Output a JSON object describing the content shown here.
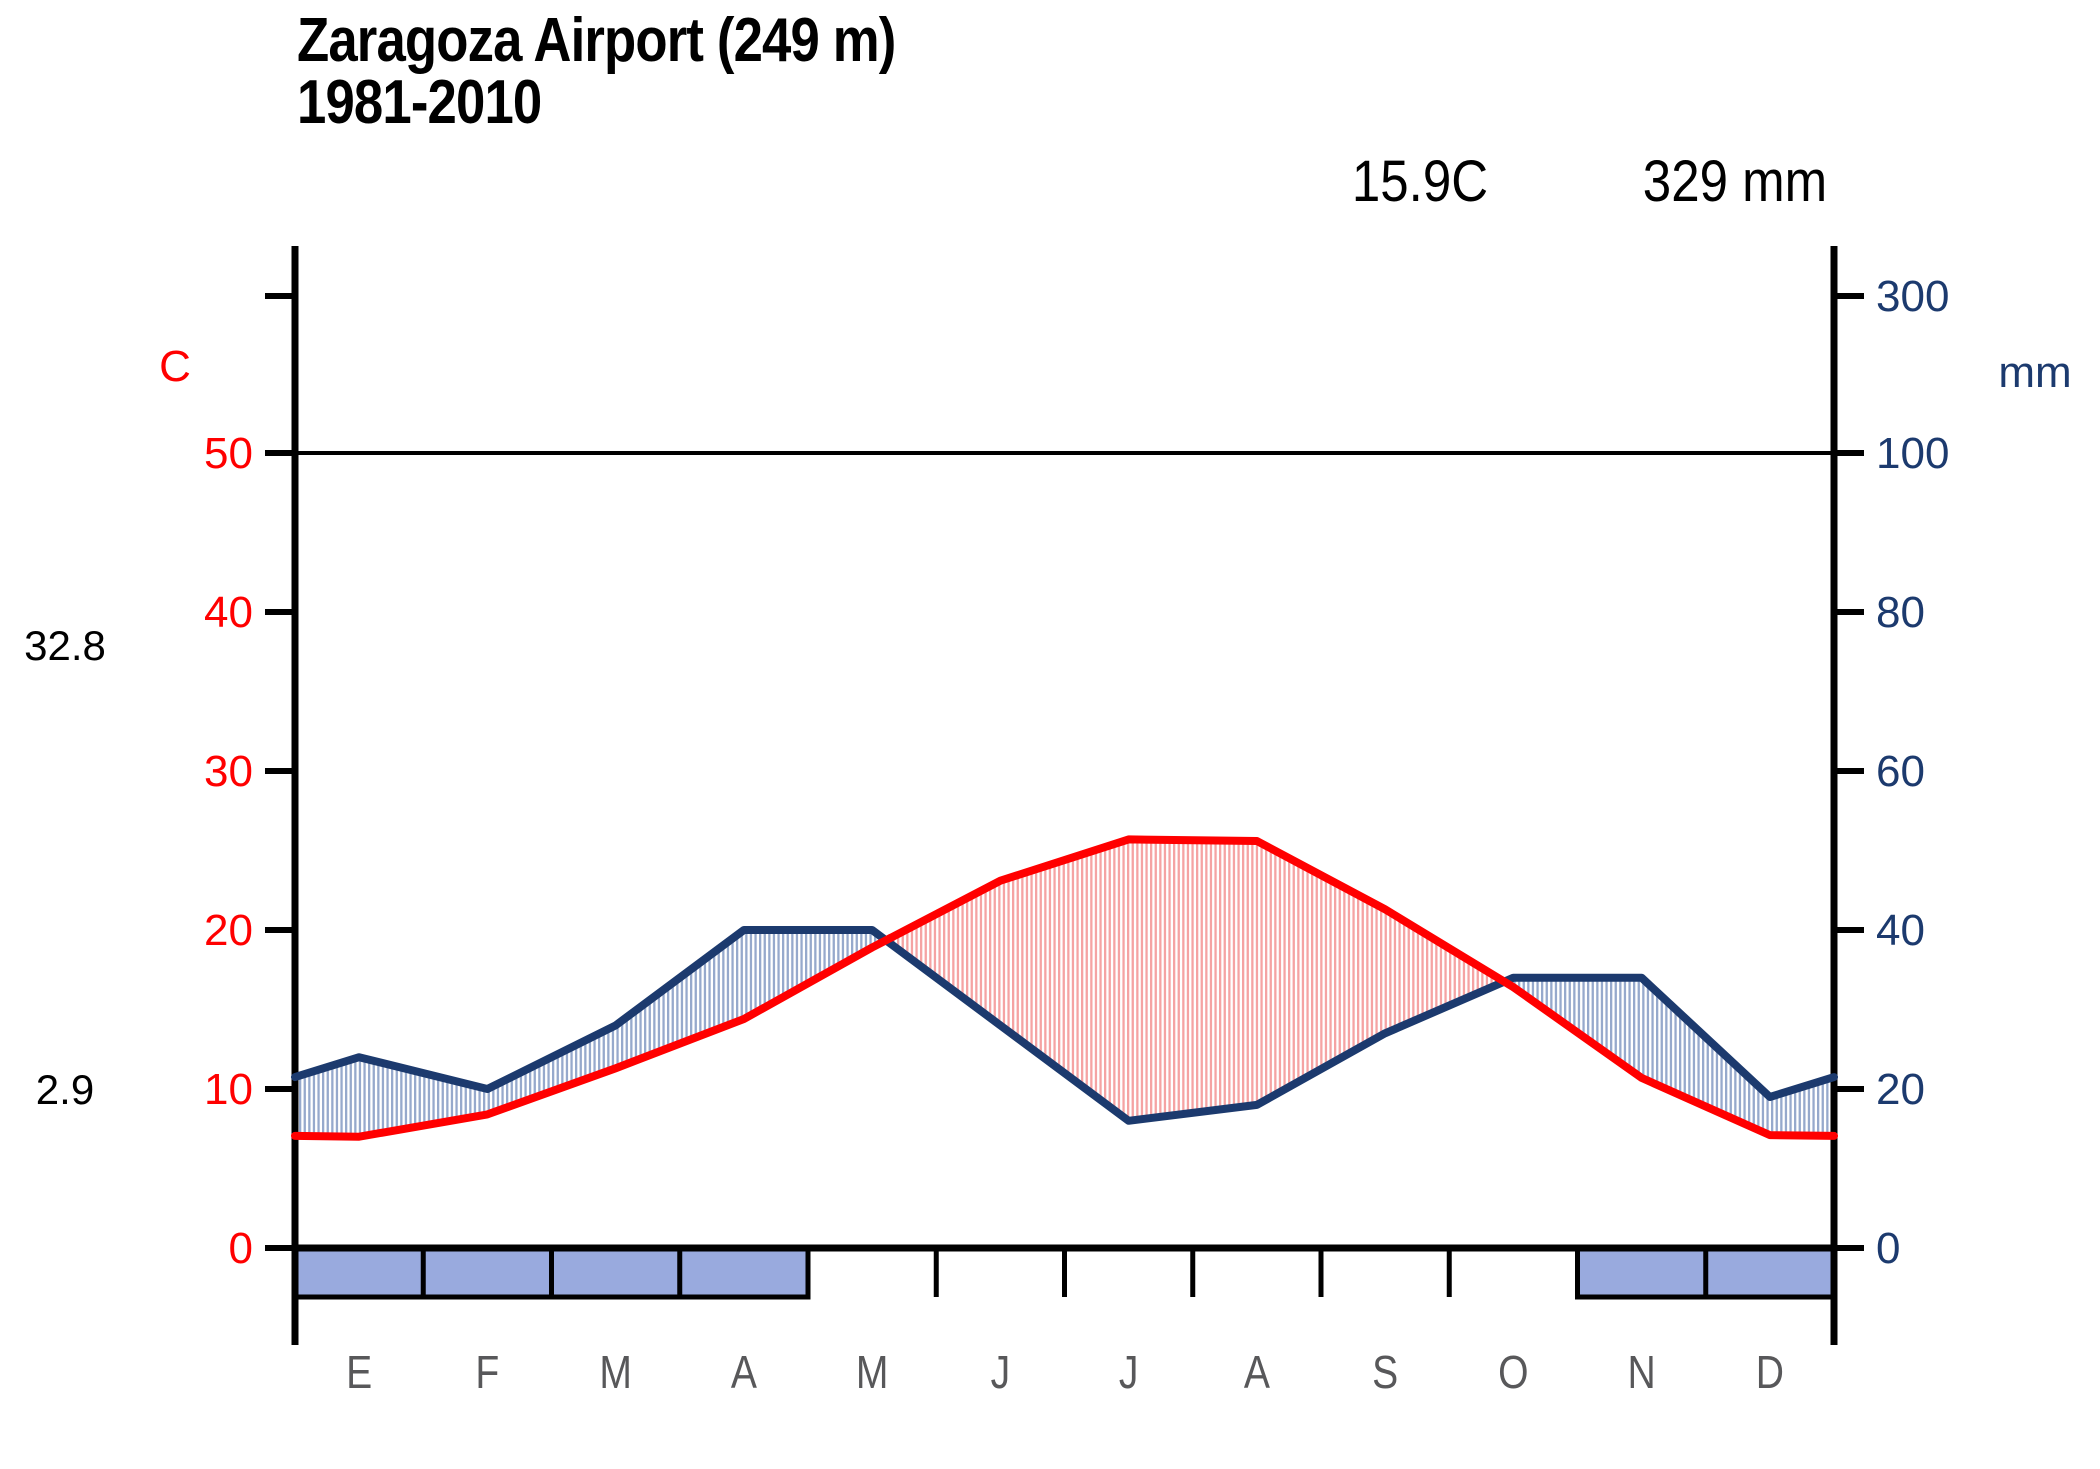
{
  "title": {
    "line1": "Zaragoza Airport (249 m)",
    "line2": "1981-2010"
  },
  "stats": {
    "annual_mean_temp": "15.9C",
    "annual_precipitation": "329 mm"
  },
  "side_labels": {
    "warmest_month_mean_max": "32.8",
    "coldest_month_mean_min": "2.9"
  },
  "axes": {
    "temp": {
      "unit": "C",
      "ticks": [
        0,
        10,
        20,
        30,
        40,
        50
      ]
    },
    "precip": {
      "unit": "mm",
      "ticks": [
        0,
        20,
        40,
        60,
        80,
        100
      ],
      "extra_tick": 300
    }
  },
  "chart_data": {
    "type": "area",
    "subtype": "walter-lieth-climate-diagram",
    "title": "Zaragoza Airport (249 m) 1981-2010",
    "categories": [
      "E",
      "F",
      "M",
      "A",
      "M",
      "J",
      "J",
      "A",
      "S",
      "O",
      "N",
      "D"
    ],
    "series": [
      {
        "name": "temperature_C",
        "values": [
          7.0,
          8.4,
          11.3,
          14.4,
          18.9,
          23.1,
          25.7,
          25.6,
          21.3,
          16.4,
          10.7,
          7.1
        ]
      },
      {
        "name": "precipitation_mm",
        "values": [
          24,
          20,
          28,
          40,
          40,
          28,
          16,
          18,
          27,
          34,
          34,
          19
        ]
      }
    ],
    "frost_months": [
      1,
      1,
      1,
      1,
      0,
      0,
      0,
      0,
      0,
      0,
      1,
      1
    ],
    "temp_axis_range": [
      0,
      50
    ],
    "precip_axis_range": [
      0,
      100
    ],
    "precip_to_temp_scale": "2 mm = 1 C",
    "grid": "off",
    "legend": "none"
  },
  "colors": {
    "temp_line": "#ff0000",
    "precip_line": "#1c3a6e",
    "temp_tick_label": "#ff0000",
    "precip_tick_label": "#1c3a6e",
    "dry_season_stripe": "#f5a3a3",
    "humid_season_stripe": "#96a9cc",
    "frost_box_fill": "#99aade",
    "axis": "#000000",
    "month_label": "#58585a"
  }
}
